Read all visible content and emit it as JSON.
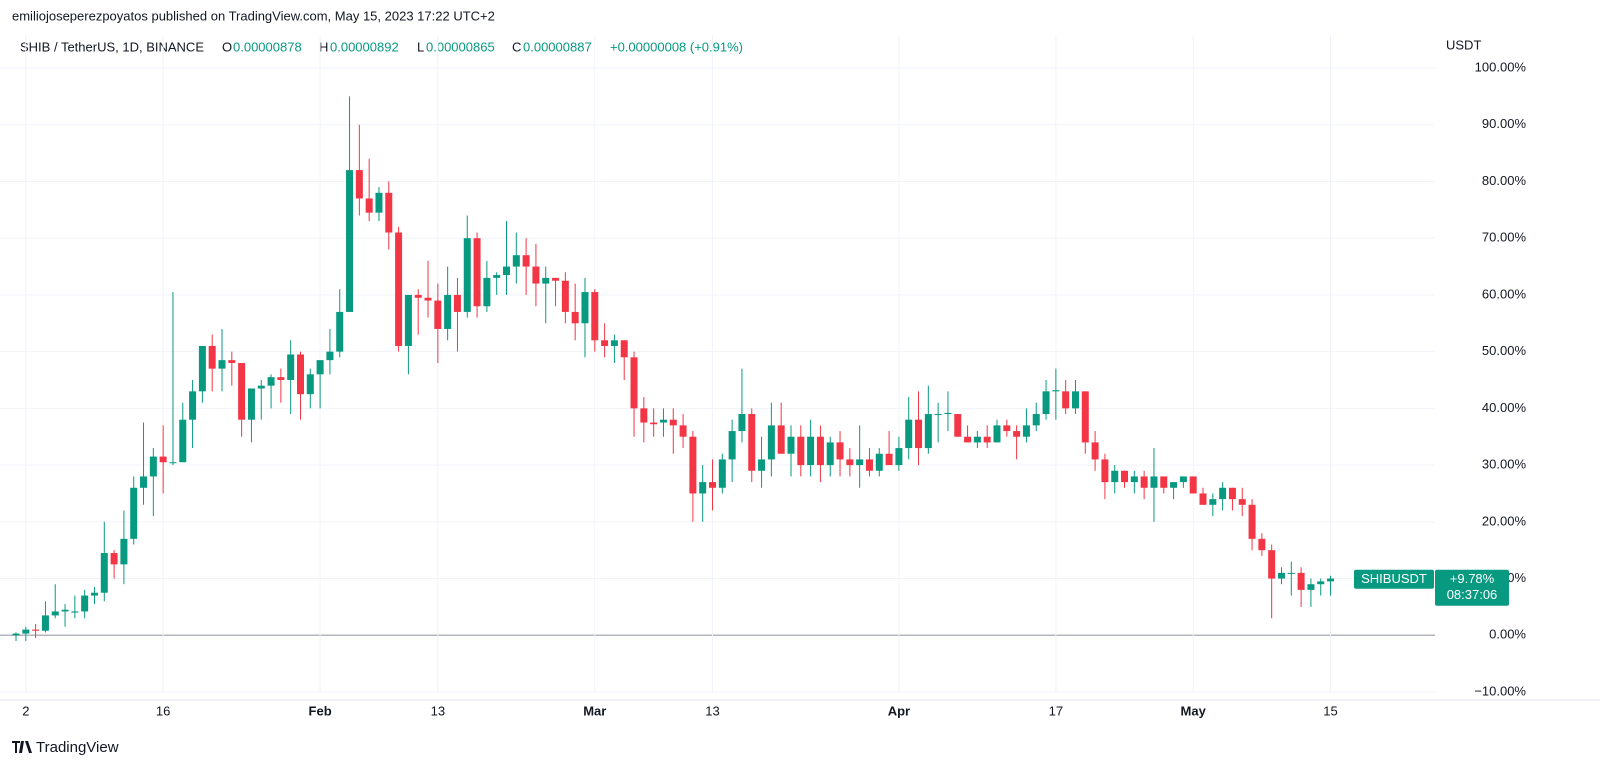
{
  "chart_data": {
    "type": "candlestick",
    "publisher": "emiliojoseperezpoyatos published on TradingView.com, May 15, 2023 17:22 UTC+2",
    "title": "SHIB / TetherUS, 1D, BINANCE",
    "legend": {
      "open_label": "O",
      "open_value": "0.00000878",
      "high_label": "H",
      "high_value": "0.00000892",
      "low_label": "L",
      "low_value": "0.00000865",
      "close_label": "C",
      "close_value": "0.00000887",
      "change": "+0.00000008 (+0.91%)"
    },
    "y_axis_label": "USDT",
    "brand": "TradingView",
    "up_color": "#089981",
    "down_color": "#f23645",
    "categories": [
      null,
      "2",
      null,
      null,
      null,
      null,
      null,
      null,
      null,
      null,
      null,
      null,
      null,
      null,
      null,
      "16",
      null,
      null,
      null,
      null,
      null,
      null,
      null,
      null,
      null,
      null,
      null,
      null,
      null,
      null,
      null,
      "Feb",
      null,
      null,
      null,
      null,
      null,
      null,
      null,
      null,
      null,
      null,
      null,
      "13",
      null,
      null,
      null,
      null,
      null,
      null,
      null,
      null,
      null,
      null,
      null,
      null,
      null,
      null,
      null,
      "Mar",
      null,
      null,
      null,
      null,
      null,
      null,
      null,
      null,
      null,
      null,
      null,
      "13",
      null,
      null,
      null,
      null,
      null,
      null,
      null,
      null,
      null,
      null,
      null,
      null,
      null,
      null,
      null,
      null,
      null,
      null,
      "Apr",
      null,
      null,
      null,
      null,
      null,
      null,
      null,
      null,
      null,
      null,
      null,
      null,
      null,
      null,
      null,
      "17",
      null,
      null,
      null,
      null,
      null,
      null,
      null,
      null,
      null,
      null,
      null,
      null,
      null,
      "May",
      null,
      null,
      null,
      null,
      null,
      null,
      null,
      null,
      null,
      null,
      null,
      null,
      null,
      "15"
    ],
    "open": [
      0,
      0.3,
      1,
      0.8,
      3.5,
      4.2,
      4,
      4.2,
      7,
      7.5,
      14.5,
      12.5,
      17,
      26,
      28,
      31.5,
      30.5,
      30.5,
      38,
      43,
      51,
      47,
      48.5,
      48,
      38,
      43.5,
      44,
      45.5,
      45,
      49.5,
      42.5,
      46,
      48.5,
      50,
      57,
      82,
      77,
      74.5,
      78,
      71,
      51,
      60,
      59.5,
      59,
      54,
      60,
      57,
      70,
      58,
      63,
      63.5,
      65,
      67,
      65,
      62,
      63,
      62.5,
      57,
      55,
      60.5,
      52,
      51,
      52,
      49,
      40,
      37.5,
      37.5,
      38,
      37,
      35,
      25,
      27,
      26,
      31,
      36,
      39,
      29,
      31,
      37,
      32,
      35,
      30,
      35,
      30,
      34,
      31,
      30,
      31,
      29,
      32,
      30,
      33,
      38,
      33,
      39,
      39,
      39,
      35,
      34,
      35,
      34,
      37,
      36,
      35,
      37,
      39,
      43,
      43,
      40,
      43,
      34,
      31,
      27,
      29,
      27,
      28,
      26,
      28,
      26,
      27,
      28,
      25,
      23,
      24,
      26,
      24,
      23,
      17,
      15,
      10,
      11,
      11,
      8,
      9,
      9.5
    ],
    "high": [
      0.5,
      1.5,
      2,
      6,
      9,
      5.5,
      7,
      8,
      8.5,
      20,
      15,
      22,
      28,
      37.5,
      33,
      37,
      60.5,
      41,
      45,
      51,
      53,
      54,
      50,
      48,
      43,
      45,
      46,
      47,
      52,
      50,
      47,
      48,
      54,
      61,
      95,
      90,
      84,
      79,
      80,
      72,
      60,
      61,
      66,
      62,
      65,
      63,
      74,
      71,
      66,
      64,
      73,
      71,
      70,
      69,
      65,
      63,
      64,
      62,
      63,
      61,
      55,
      53,
      52,
      50,
      42,
      40,
      40,
      40,
      39,
      36,
      30,
      31,
      32,
      38,
      47,
      40,
      35,
      41,
      41,
      37,
      37,
      38,
      37,
      35,
      36,
      33,
      37,
      33,
      33,
      36,
      35,
      42,
      43,
      44,
      41,
      43,
      39,
      37,
      36,
      37,
      38,
      38,
      37,
      40,
      41,
      45,
      47,
      45,
      45,
      43,
      36,
      32,
      30,
      29,
      29,
      29,
      33,
      28,
      27,
      28,
      28,
      26,
      25,
      27,
      26,
      26,
      24,
      18,
      16,
      12,
      13,
      12,
      10,
      10,
      10.5
    ],
    "low": [
      -1,
      -1,
      -0.5,
      0.5,
      3,
      1.5,
      3,
      3,
      5.5,
      6,
      10,
      9,
      16,
      23,
      21,
      25,
      30,
      31,
      33,
      41,
      43,
      43,
      44,
      35,
      34,
      38,
      40,
      41,
      39,
      38,
      40,
      40,
      46,
      49,
      57,
      74,
      73,
      73,
      68,
      50,
      46,
      53,
      56,
      48,
      52,
      50,
      56,
      56,
      57,
      60,
      60,
      62,
      60,
      58,
      55,
      58,
      55,
      52,
      49,
      50,
      49,
      48,
      45,
      35,
      34,
      35,
      35,
      32,
      33,
      20,
      20,
      22,
      25,
      27,
      34,
      27,
      26,
      28,
      33,
      28,
      28,
      28,
      27,
      28,
      28,
      28,
      26,
      28,
      28,
      30,
      29,
      31,
      30,
      32,
      34,
      36,
      35,
      34,
      33,
      33,
      34,
      35,
      31,
      34,
      36,
      38,
      38,
      39,
      39,
      32,
      29,
      24,
      25,
      26,
      25,
      24,
      20,
      25,
      24,
      26,
      25,
      23,
      21,
      22,
      22,
      21,
      15,
      14,
      3,
      9,
      7,
      5,
      5,
      7,
      7
    ],
    "close": [
      0.3,
      1,
      0.8,
      3.5,
      4.2,
      4.5,
      4.2,
      7,
      7.5,
      14.5,
      12.5,
      17,
      26,
      28,
      31.5,
      30.5,
      30.5,
      38,
      43,
      51,
      47,
      48.5,
      48,
      38,
      43.5,
      44,
      45.5,
      45,
      49.5,
      42.5,
      46,
      48.5,
      50,
      57,
      82,
      77,
      74.5,
      78,
      71,
      51,
      60,
      59.5,
      59,
      54,
      60,
      57,
      70,
      58,
      63,
      63.5,
      65,
      67,
      65,
      62,
      63,
      62.5,
      57,
      55,
      60.5,
      52,
      51,
      52,
      49,
      40,
      37.5,
      37.2,
      38,
      37,
      35,
      25,
      27,
      26,
      31,
      36,
      39,
      29,
      31,
      37,
      32,
      35,
      30,
      35,
      30,
      34,
      31,
      30,
      31,
      29,
      32,
      30,
      33,
      38,
      33,
      39,
      39,
      39.2,
      35,
      34,
      35,
      34,
      37,
      36,
      35,
      37,
      39,
      43,
      43.2,
      40,
      43,
      34,
      31,
      27,
      29,
      27,
      28,
      26,
      28,
      26,
      27,
      28,
      25,
      23,
      24,
      26,
      24,
      23,
      17,
      15,
      10,
      11,
      11,
      8,
      9,
      9.5,
      10
    ],
    "ylim": [
      -10,
      100
    ],
    "yticks": [
      {
        "value": -10,
        "label": "−10.00%"
      },
      {
        "value": 0,
        "label": "0.00%"
      },
      {
        "value": 10,
        "label": "10.00%"
      },
      {
        "value": 20,
        "label": "20.00%"
      },
      {
        "value": 30,
        "label": "30.00%"
      },
      {
        "value": 40,
        "label": "40.00%"
      },
      {
        "value": 50,
        "label": "50.00%"
      },
      {
        "value": 60,
        "label": "60.00%"
      },
      {
        "value": 70,
        "label": "70.00%"
      },
      {
        "value": 80,
        "label": "80.00%"
      },
      {
        "value": 90,
        "label": "90.00%"
      },
      {
        "value": 100,
        "label": "100.00%"
      }
    ],
    "grid": true,
    "last_label": {
      "symbol": "SHIBUSDT",
      "change": {
        "value": 9.78,
        "label": "+9.78%"
      },
      "countdown": "08:37:06"
    }
  }
}
